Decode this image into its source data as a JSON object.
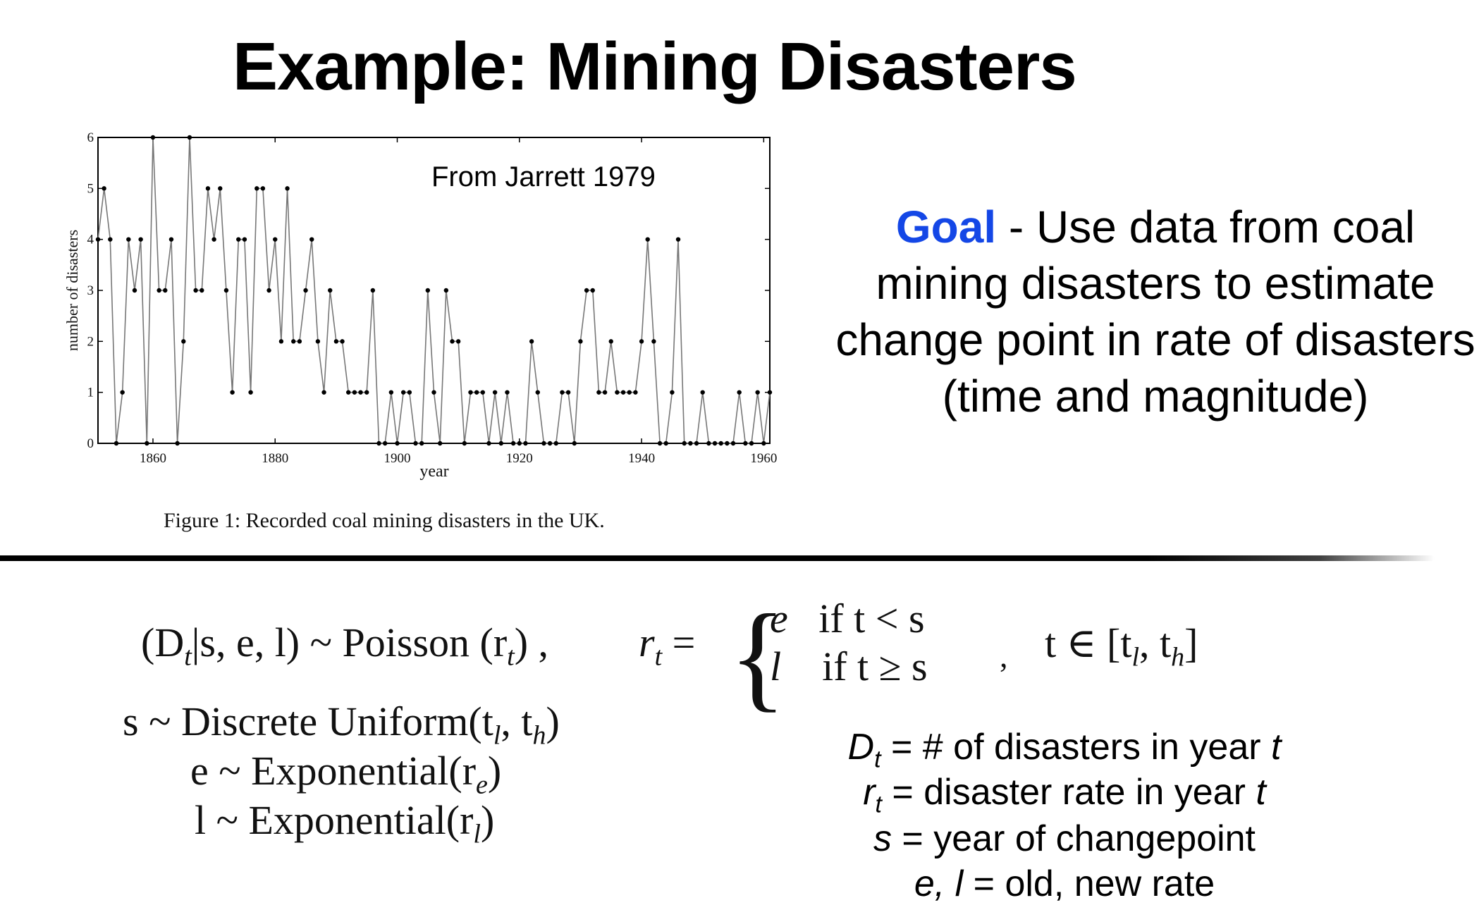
{
  "slide": {
    "title": "Example: Mining Disasters",
    "goal_word": "Goal",
    "goal_text": " - Use data from coal mining disasters to estimate change point in rate of disasters (time and magnitude)",
    "caption": "Figure 1: Recorded coal mining disasters in the UK."
  },
  "colors": {
    "goal": "#1447e6",
    "line": "#777777",
    "point": "#000000"
  },
  "equations": {
    "likelihood_lhs": "(D",
    "likelihood_lhs_sub": "t",
    "likelihood_lhs_rest": "|s, e, l) ~ Poisson (r",
    "likelihood_rhs_sub": "t",
    "likelihood_close": ") ,",
    "rate_lhs": "r",
    "rate_lhs_sub": "t",
    "rate_eq": " =",
    "case1_value": "e",
    "case1_cond": "if   t < s",
    "case2_value": "l",
    "case2_cond": "if   t ≥ s",
    "case_comma": ",",
    "range_prefix": "t ∈ [t",
    "range_sub1": "l",
    "range_mid": ", t",
    "range_sub2": "h",
    "range_close": "]",
    "prior_s": "s ~ Discrete Uniform(t",
    "prior_s_sub1": "l",
    "prior_s_mid": ", t",
    "prior_s_sub2": "h",
    "prior_s_close": ")",
    "prior_e": "e ~ Exponential(r",
    "prior_e_sub": "e",
    "prior_e_close": ")",
    "prior_l": "l ~ Exponential(r",
    "prior_l_sub": "l",
    "prior_l_close": ")"
  },
  "definitions": {
    "d_sym": "D",
    "d_sub": "t",
    "d_text": " = # of disasters in year ",
    "d_var": "t",
    "r_sym": "r",
    "r_sub": "t",
    "r_text": " = disaster rate in year ",
    "r_var": "t",
    "s_sym": "s",
    "s_text": "  = year of changepoint",
    "el_sym": "e, l",
    "el_text": " = old, new rate"
  },
  "chart_data": {
    "type": "line",
    "annotation": "From Jarrett 1979",
    "xlabel": "year",
    "ylabel": "number of disasters",
    "xlim": [
      1851,
      1961
    ],
    "ylim": [
      0,
      6
    ],
    "x_ticks": [
      1860,
      1880,
      1900,
      1920,
      1940,
      1960
    ],
    "y_ticks": [
      0,
      1,
      2,
      3,
      4,
      5,
      6
    ],
    "grid": false,
    "series": [
      {
        "x_start": 1851,
        "x_step": 1,
        "values": [
          4,
          5,
          4,
          0,
          1,
          4,
          3,
          4,
          0,
          6,
          3,
          3,
          4,
          0,
          2,
          6,
          3,
          3,
          5,
          4,
          5,
          3,
          1,
          4,
          4,
          1,
          5,
          5,
          3,
          4,
          2,
          5,
          2,
          2,
          3,
          4,
          2,
          1,
          3,
          2,
          2,
          1,
          1,
          1,
          1,
          3,
          0,
          0,
          1,
          0,
          1,
          1,
          0,
          0,
          3,
          1,
          0,
          3,
          2,
          2,
          0,
          1,
          1,
          1,
          0,
          1,
          0,
          1,
          0,
          0,
          0,
          2,
          1,
          0,
          0,
          0,
          1,
          1,
          0,
          2,
          3,
          3,
          1,
          1,
          2,
          1,
          1,
          1,
          1,
          2,
          4,
          2,
          0,
          0,
          1,
          4,
          0,
          0,
          0,
          1,
          0,
          0,
          0,
          0,
          0,
          1,
          0,
          0,
          1,
          0,
          1
        ]
      }
    ]
  }
}
